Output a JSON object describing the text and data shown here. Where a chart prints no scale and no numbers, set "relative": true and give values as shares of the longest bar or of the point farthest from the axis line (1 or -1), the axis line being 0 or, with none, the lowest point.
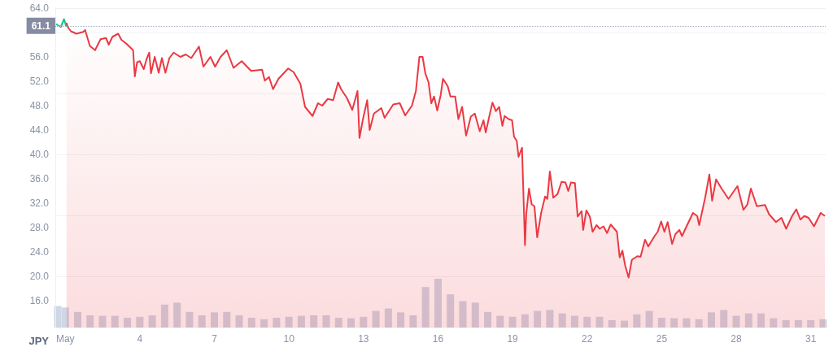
{
  "chart_data": [
    {
      "type": "line",
      "ylabel": "JPY",
      "xlim": [
        0.6,
        31.6
      ],
      "ylim": [
        11.6,
        64
      ],
      "xticks": [
        {
          "value": 1,
          "label": "May"
        },
        4,
        7,
        10,
        13,
        16,
        19,
        22,
        25,
        28,
        31
      ],
      "yticks": [
        {
          "value": 16,
          "label": "16.0"
        },
        {
          "value": 20,
          "label": "20.0"
        },
        {
          "value": 24,
          "label": "24.0"
        },
        {
          "value": 28,
          "label": "28.0"
        },
        {
          "value": 32,
          "label": "32.0"
        },
        {
          "value": 36,
          "label": "36.0"
        },
        {
          "value": 40,
          "label": "40.0"
        },
        {
          "value": 44,
          "label": "44.0"
        },
        {
          "value": 48,
          "label": "48.0"
        },
        {
          "value": 52,
          "label": "52.0"
        },
        {
          "value": 56,
          "label": "56.0"
        },
        {
          "value": 60,
          "label": null
        },
        {
          "value": 64,
          "label": "64.0"
        }
      ],
      "grid": "y",
      "marker": "none",
      "ref_lines": [
        {
          "axis": "y",
          "value": 61.1,
          "label": "61.1",
          "color": "#a6b0c3",
          "line_style": "dotted"
        }
      ],
      "series": [
        {
          "type": "line",
          "color": "#16c784",
          "x": [
            0.63,
            0.82,
            0.95,
            1.03,
            1.05
          ],
          "values": [
            61.4,
            60.9,
            62.2,
            61.1,
            61.6
          ]
        },
        {
          "type": "area",
          "color": "#ea3943",
          "x": [
            1.05,
            1.1,
            1.23,
            1.45,
            1.72,
            1.8,
            1.99,
            2.2,
            2.42,
            2.64,
            2.75,
            2.9,
            3.13,
            3.26,
            3.45,
            3.73,
            3.8,
            3.89,
            4.0,
            4.16,
            4.27,
            4.38,
            4.45,
            4.6,
            4.76,
            4.89,
            5.03,
            5.19,
            5.36,
            5.63,
            5.85,
            6.07,
            6.38,
            6.56,
            6.84,
            7.03,
            7.25,
            7.5,
            7.77,
            8.1,
            8.48,
            8.92,
            9.03,
            9.2,
            9.36,
            9.58,
            9.97,
            10.19,
            10.46,
            10.65,
            10.95,
            11.17,
            11.34,
            11.56,
            11.78,
            11.98,
            12.1,
            12.33,
            12.55,
            12.76,
            12.84,
            12.98,
            13.15,
            13.25,
            13.42,
            13.72,
            13.85,
            14.2,
            14.46,
            14.68,
            14.95,
            15.11,
            15.25,
            15.38,
            15.49,
            15.62,
            15.73,
            15.84,
            15.97,
            16.11,
            16.2,
            16.39,
            16.5,
            16.69,
            16.82,
            16.97,
            17.13,
            17.32,
            17.48,
            17.68,
            17.83,
            17.92,
            18.05,
            18.19,
            18.33,
            18.46,
            18.59,
            18.68,
            18.84,
            18.98,
            19.06,
            19.17,
            19.24,
            19.38,
            19.5,
            19.55,
            19.66,
            19.77,
            19.88,
            19.99,
            20.15,
            20.31,
            20.4,
            20.5,
            20.64,
            20.81,
            20.97,
            21.13,
            21.24,
            21.35,
            21.51,
            21.62,
            21.78,
            21.84,
            21.97,
            22.11,
            22.22,
            22.38,
            22.51,
            22.66,
            22.8,
            22.95,
            23.2,
            23.31,
            23.42,
            23.53,
            23.67,
            23.8,
            24.02,
            24.15,
            24.33,
            24.46,
            24.73,
            24.84,
            24.98,
            25.11,
            25.24,
            25.42,
            25.55,
            25.71,
            25.82,
            25.99,
            26.26,
            26.43,
            26.51,
            26.75,
            26.92,
            27.03,
            27.19,
            27.41,
            27.69,
            28.05,
            28.29,
            28.45,
            28.59,
            28.83,
            29.16,
            29.32,
            29.6,
            29.82,
            30.01,
            30.25,
            30.42,
            30.58,
            30.74,
            30.91,
            31.13,
            31.4,
            31.57
          ],
          "values": [
            61.6,
            60.9,
            60.2,
            59.8,
            60.1,
            60.4,
            57.8,
            57.1,
            58.9,
            59.1,
            58.0,
            59.3,
            59.8,
            58.8,
            58.2,
            57.1,
            52.8,
            55.1,
            55.3,
            54.0,
            55.6,
            56.7,
            53.3,
            56.0,
            53.4,
            55.8,
            53.4,
            55.8,
            56.7,
            56.0,
            56.4,
            55.8,
            57.7,
            54.4,
            56.0,
            54.4,
            56.0,
            57.1,
            54.2,
            55.3,
            53.7,
            53.9,
            52.1,
            52.7,
            50.7,
            52.4,
            54.1,
            53.5,
            51.6,
            47.8,
            46.3,
            48.4,
            48.0,
            49.1,
            48.9,
            51.8,
            50.7,
            49.3,
            47.3,
            50.4,
            42.7,
            45.8,
            48.9,
            44.0,
            46.7,
            47.6,
            46.0,
            48.2,
            48.4,
            46.4,
            48.0,
            50.4,
            56.0,
            56.0,
            53.3,
            51.8,
            48.4,
            49.5,
            47.2,
            49.8,
            52.4,
            51.2,
            49.5,
            49.5,
            45.8,
            47.8,
            43.1,
            46.2,
            46.7,
            43.8,
            45.6,
            43.6,
            46.0,
            48.5,
            47.1,
            47.8,
            44.7,
            46.3,
            45.8,
            45.6,
            42.9,
            42.2,
            39.6,
            41.1,
            25.1,
            30.2,
            34.4,
            31.8,
            31.5,
            26.4,
            30.4,
            33.1,
            32.7,
            37.2,
            32.9,
            33.5,
            35.5,
            35.4,
            34.0,
            35.4,
            35.3,
            29.8,
            30.7,
            27.6,
            30.8,
            29.8,
            27.3,
            28.4,
            27.8,
            28.2,
            27.1,
            28.5,
            27.3,
            23.1,
            24.2,
            21.8,
            19.8,
            22.7,
            23.3,
            23.2,
            26.0,
            24.9,
            26.7,
            27.3,
            29.0,
            27.3,
            28.9,
            25.3,
            26.9,
            27.6,
            26.6,
            28.1,
            30.4,
            29.9,
            28.4,
            32.9,
            36.7,
            32.4,
            35.9,
            34.4,
            32.7,
            34.8,
            30.9,
            31.8,
            34.4,
            31.5,
            31.7,
            30.2,
            28.9,
            29.6,
            27.8,
            29.9,
            31.0,
            29.3,
            29.9,
            29.6,
            28.2,
            30.4,
            29.9
          ]
        }
      ]
    },
    {
      "type": "bar",
      "relative": true,
      "tick_labels": false,
      "xlim": [
        0.6,
        31.6
      ],
      "color": "#cfd6e4",
      "x": [
        0.7,
        1,
        1.5,
        2,
        2.5,
        3,
        3.5,
        4,
        4.5,
        5,
        5.5,
        6,
        6.5,
        7,
        7.5,
        8,
        8.5,
        9,
        9.5,
        10,
        10.5,
        11,
        11.5,
        12,
        12.5,
        13,
        13.5,
        14,
        14.5,
        15,
        15.5,
        16,
        16.5,
        17,
        17.5,
        18,
        18.5,
        19,
        19.5,
        20,
        20.5,
        21,
        21.5,
        22,
        22.5,
        23,
        23.5,
        24,
        24.5,
        25,
        25.5,
        26,
        26.5,
        27,
        27.5,
        28,
        28.5,
        29,
        29.5,
        30,
        30.5,
        31,
        31.5
      ],
      "values": [
        0.44,
        0.41,
        0.32,
        0.25,
        0.24,
        0.24,
        0.2,
        0.22,
        0.25,
        0.47,
        0.51,
        0.32,
        0.25,
        0.31,
        0.32,
        0.25,
        0.2,
        0.17,
        0.2,
        0.22,
        0.24,
        0.25,
        0.25,
        0.2,
        0.19,
        0.22,
        0.34,
        0.39,
        0.31,
        0.25,
        0.83,
        1,
        0.68,
        0.54,
        0.51,
        0.32,
        0.24,
        0.22,
        0.27,
        0.34,
        0.36,
        0.29,
        0.24,
        0.22,
        0.22,
        0.15,
        0.14,
        0.27,
        0.34,
        0.2,
        0.19,
        0.19,
        0.17,
        0.31,
        0.36,
        0.24,
        0.29,
        0.29,
        0.19,
        0.15,
        0.15,
        0.15,
        0.17
      ]
    }
  ]
}
